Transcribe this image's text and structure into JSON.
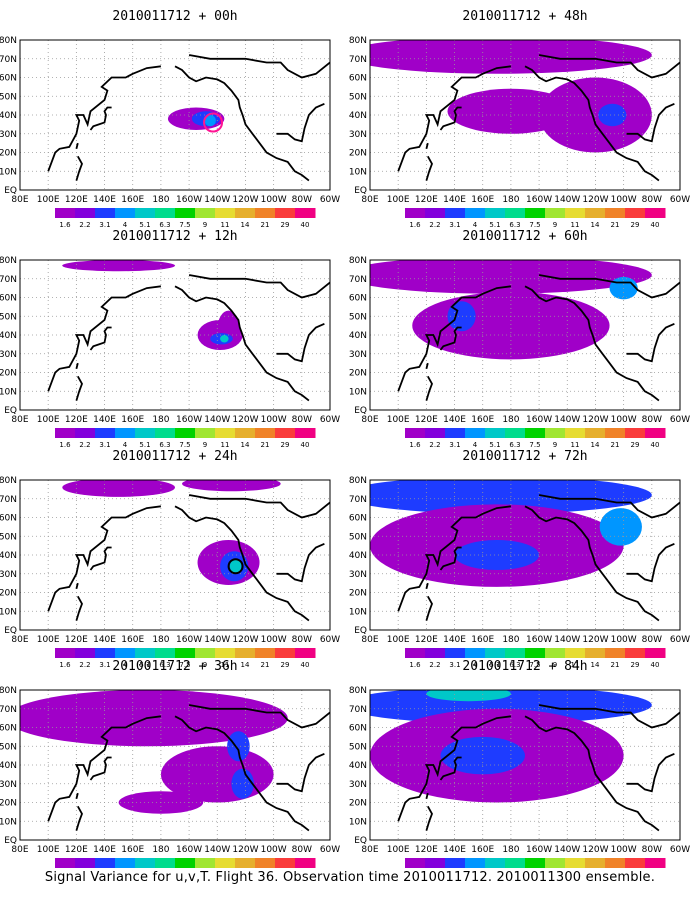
{
  "figure": {
    "caption": "Signal Variance for u,v,T. Flight 36. Observation time 2010011712. 2010011300 ensemble.",
    "x_ticks": [
      "80E",
      "100E",
      "120E",
      "140E",
      "160E",
      "180",
      "160W",
      "140W",
      "120W",
      "100W",
      "80W",
      "60W"
    ],
    "y_ticks": [
      "80N",
      "70N",
      "60N",
      "50N",
      "40N",
      "30N",
      "20N",
      "10N",
      "EQ"
    ],
    "colorbar_levels": [
      "1.6",
      "2.2",
      "3.1",
      "4",
      "5.1",
      "6.3",
      "7.5",
      "9",
      "11",
      "14",
      "21",
      "29",
      "40"
    ],
    "colorbar_colors": [
      "#a000c8",
      "#8200dc",
      "#1e3cff",
      "#0096ff",
      "#00c8c8",
      "#00dc8c",
      "#00d200",
      "#a0e632",
      "#e6dc32",
      "#e6af2d",
      "#f08228",
      "#fa3c3c",
      "#f00082"
    ]
  },
  "panels": [
    {
      "title": "2010011712 + 00h",
      "blobs": [
        {
          "lon": 205,
          "lat": 38,
          "rx": 20,
          "ry": 6,
          "level": 0
        },
        {
          "lon": 212,
          "lat": 38,
          "rx": 10,
          "ry": 4,
          "level": 2
        },
        {
          "lon": 215,
          "lat": 37,
          "rx": 4,
          "ry": 3,
          "level": 3
        }
      ],
      "marker": {
        "lon": 217,
        "lat": 36,
        "r": 9,
        "color": "#ff1493"
      }
    },
    {
      "title": "2010011712 + 12h",
      "blobs": [
        {
          "lon": 222,
          "lat": 40,
          "rx": 16,
          "ry": 8,
          "level": 0
        },
        {
          "lon": 228,
          "lat": 43,
          "rx": 8,
          "ry": 10,
          "level": 0
        },
        {
          "lon": 223,
          "lat": 38,
          "rx": 8,
          "ry": 3,
          "level": 2
        },
        {
          "lon": 225,
          "lat": 38,
          "rx": 3,
          "ry": 2,
          "level": 4
        },
        {
          "lon": 150,
          "lat": 77,
          "rx": 40,
          "ry": 3,
          "level": 0
        }
      ],
      "marker": null
    },
    {
      "title": "2010011712 + 24h",
      "blobs": [
        {
          "lon": 228,
          "lat": 36,
          "rx": 22,
          "ry": 12,
          "level": 0
        },
        {
          "lon": 232,
          "lat": 34,
          "rx": 10,
          "ry": 8,
          "level": 2
        },
        {
          "lon": 233,
          "lat": 34,
          "rx": 4,
          "ry": 4,
          "level": 4
        },
        {
          "lon": 150,
          "lat": 76,
          "rx": 40,
          "ry": 5,
          "level": 0
        },
        {
          "lon": 230,
          "lat": 78,
          "rx": 35,
          "ry": 4,
          "level": 0
        }
      ],
      "marker": {
        "lon": 233,
        "lat": 34,
        "r": 7,
        "color": "#000000"
      }
    },
    {
      "title": "2010011712 + 36h",
      "blobs": [
        {
          "lon": 170,
          "lat": 65,
          "rx": 100,
          "ry": 15,
          "level": 0
        },
        {
          "lon": 220,
          "lat": 35,
          "rx": 40,
          "ry": 15,
          "level": 0
        },
        {
          "lon": 238,
          "lat": 30,
          "rx": 8,
          "ry": 8,
          "level": 2
        },
        {
          "lon": 235,
          "lat": 50,
          "rx": 8,
          "ry": 8,
          "level": 2
        },
        {
          "lon": 180,
          "lat": 20,
          "rx": 30,
          "ry": 6,
          "level": 0
        }
      ],
      "marker": null
    },
    {
      "title": "2010011712 + 48h",
      "blobs": [
        {
          "lon": 170,
          "lat": 72,
          "rx": 110,
          "ry": 10,
          "level": 0
        },
        {
          "lon": 240,
          "lat": 40,
          "rx": 40,
          "ry": 20,
          "level": 0
        },
        {
          "lon": 180,
          "lat": 42,
          "rx": 45,
          "ry": 12,
          "level": 0
        },
        {
          "lon": 252,
          "lat": 40,
          "rx": 10,
          "ry": 6,
          "level": 2
        }
      ],
      "marker": null
    },
    {
      "title": "2010011712 + 60h",
      "blobs": [
        {
          "lon": 170,
          "lat": 72,
          "rx": 110,
          "ry": 10,
          "level": 0
        },
        {
          "lon": 180,
          "lat": 45,
          "rx": 70,
          "ry": 18,
          "level": 0
        },
        {
          "lon": 145,
          "lat": 50,
          "rx": 10,
          "ry": 8,
          "level": 2
        },
        {
          "lon": 260,
          "lat": 65,
          "rx": 10,
          "ry": 6,
          "level": 3
        }
      ],
      "marker": null
    },
    {
      "title": "2010011712 + 72h",
      "blobs": [
        {
          "lon": 170,
          "lat": 72,
          "rx": 110,
          "ry": 10,
          "level": 2
        },
        {
          "lon": 170,
          "lat": 45,
          "rx": 90,
          "ry": 22,
          "level": 0
        },
        {
          "lon": 170,
          "lat": 40,
          "rx": 30,
          "ry": 8,
          "level": 2
        },
        {
          "lon": 258,
          "lat": 55,
          "rx": 15,
          "ry": 10,
          "level": 3
        }
      ],
      "marker": null
    },
    {
      "title": "2010011712 + 84h",
      "blobs": [
        {
          "lon": 170,
          "lat": 72,
          "rx": 110,
          "ry": 10,
          "level": 2
        },
        {
          "lon": 170,
          "lat": 45,
          "rx": 90,
          "ry": 25,
          "level": 0
        },
        {
          "lon": 160,
          "lat": 45,
          "rx": 30,
          "ry": 10,
          "level": 2
        },
        {
          "lon": 150,
          "lat": 78,
          "rx": 30,
          "ry": 4,
          "level": 4
        }
      ],
      "marker": null
    }
  ]
}
